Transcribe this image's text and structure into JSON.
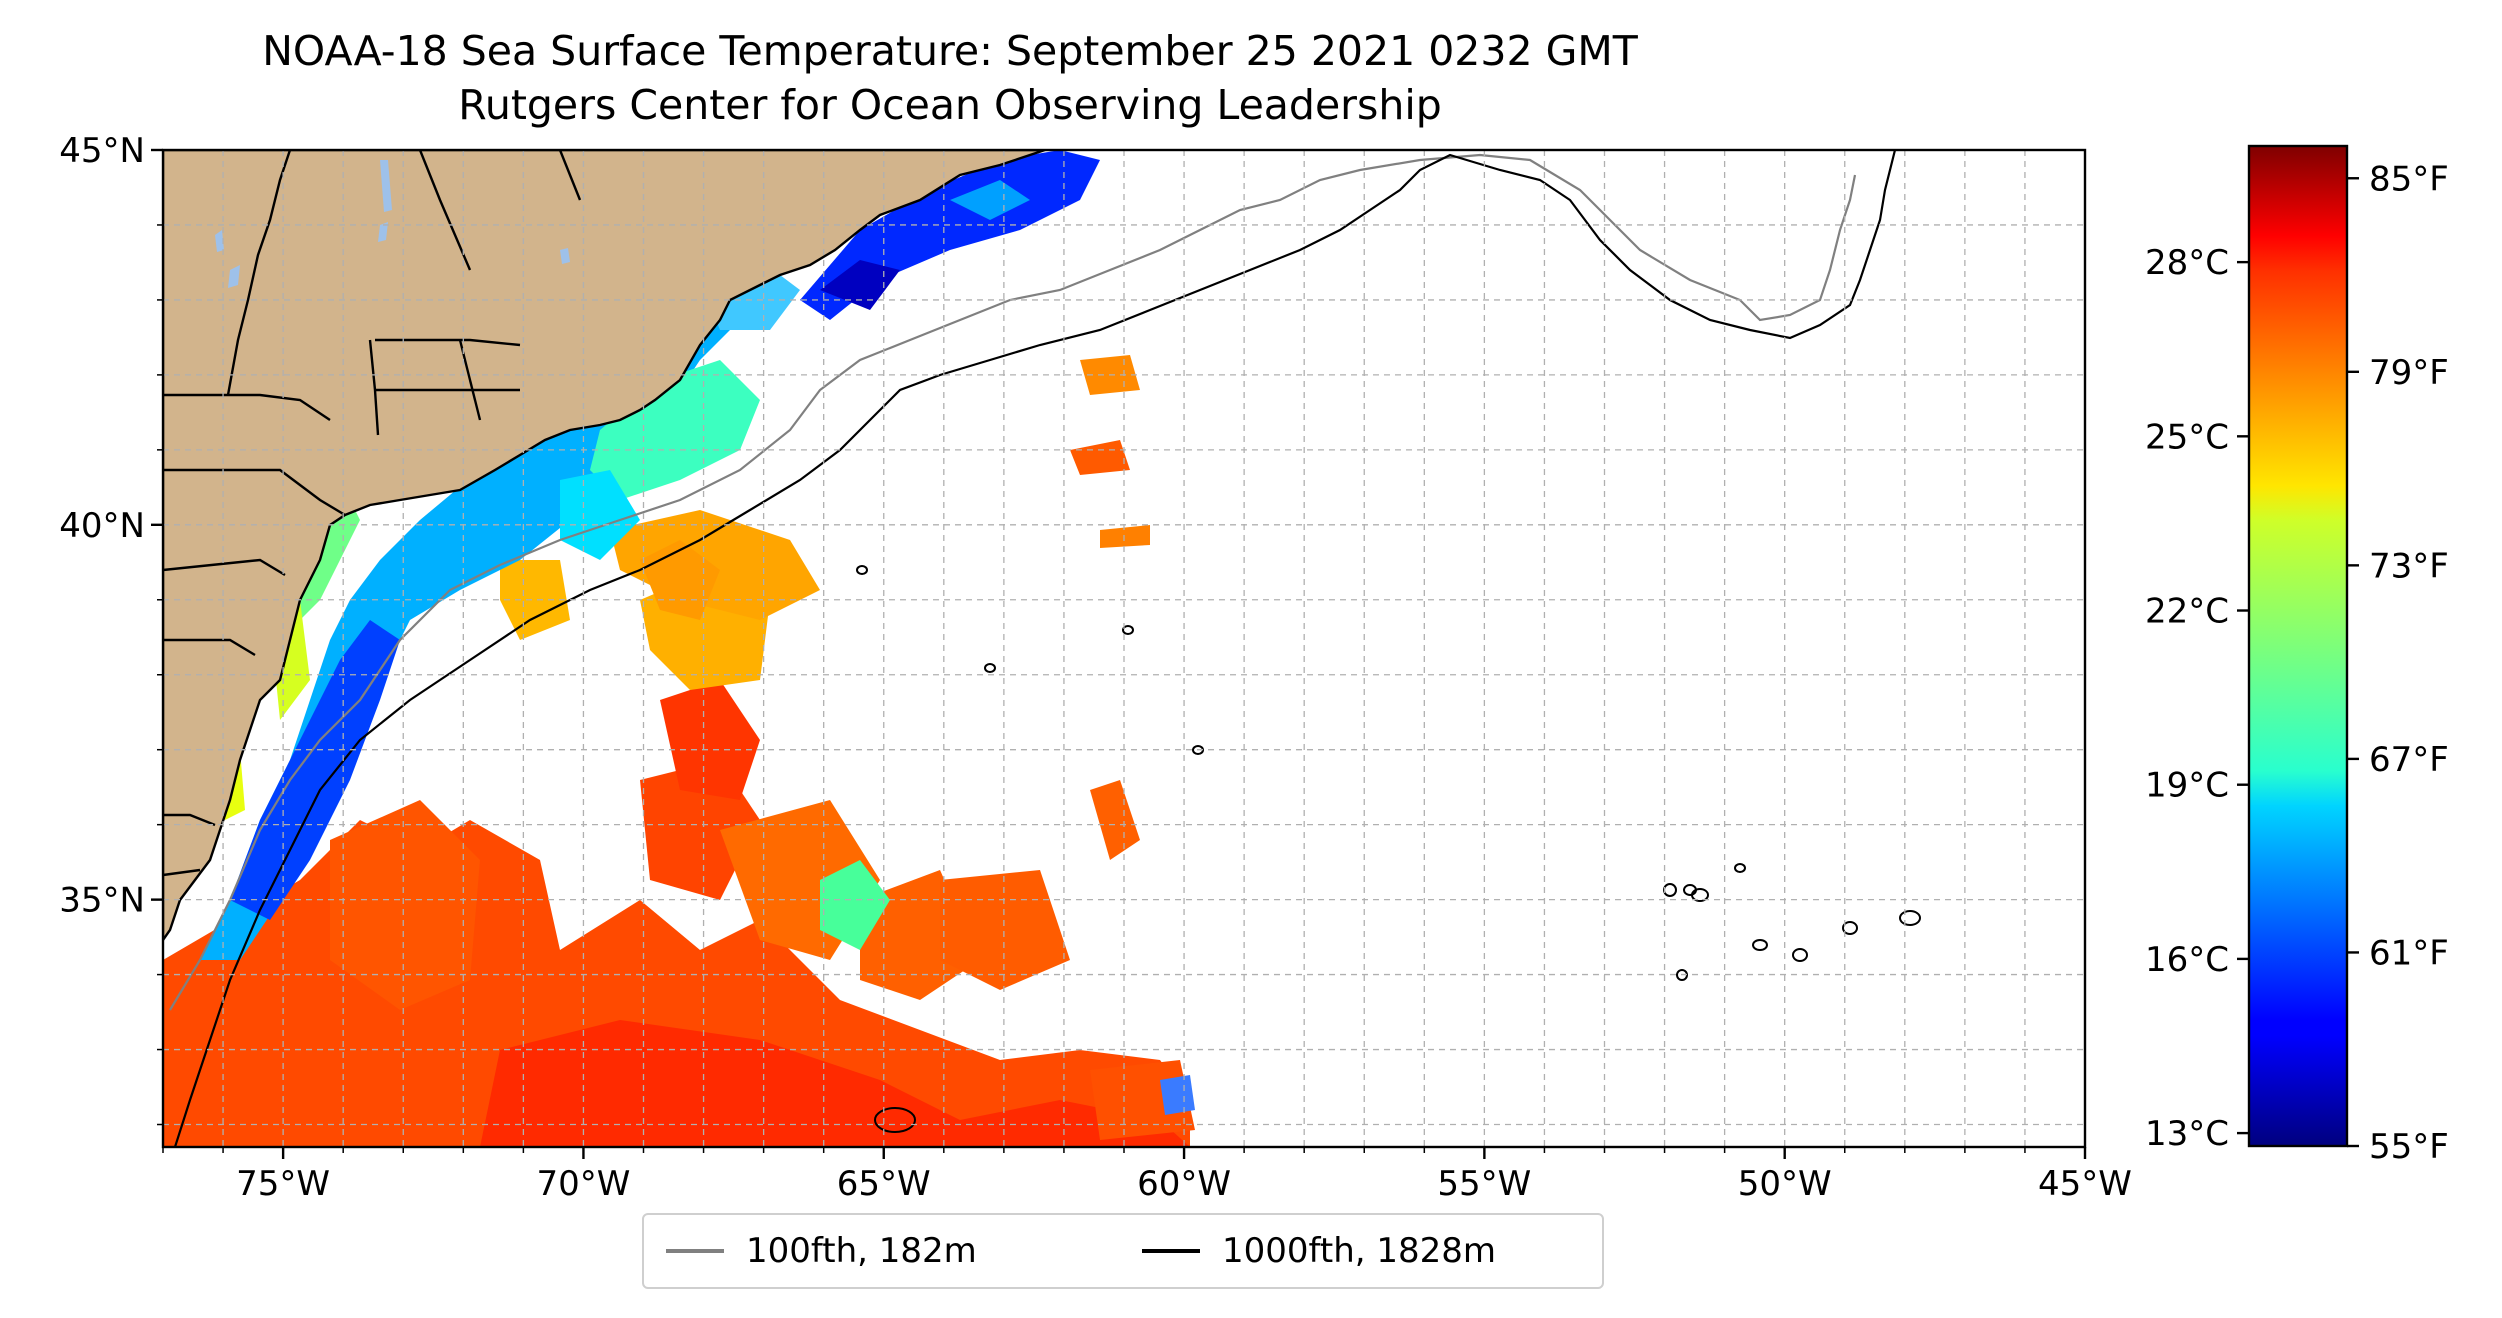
{
  "title": "NOAA-18 Sea Surface Temperature: September 25 2021 0232 GMT",
  "subtitle": "Rutgers Center for Ocean Observing Leadership",
  "map": {
    "lon_range": [
      -77,
      -45
    ],
    "lat_range": [
      31.7,
      45
    ],
    "lon_ticks": [
      {
        "lon": -75,
        "label": "75°W"
      },
      {
        "lon": -70,
        "label": "70°W"
      },
      {
        "lon": -65,
        "label": "65°W"
      },
      {
        "lon": -60,
        "label": "60°W"
      },
      {
        "lon": -55,
        "label": "55°W"
      },
      {
        "lon": -50,
        "label": "50°W"
      },
      {
        "lon": -45,
        "label": "45°W"
      }
    ],
    "lat_ticks": [
      {
        "lat": 45,
        "label": "45°N"
      },
      {
        "lat": 40,
        "label": "40°N"
      },
      {
        "lat": 35,
        "label": "35°N"
      }
    ],
    "grid": true,
    "land_color": "#d2b48c",
    "lake_color": "#9ec1ea"
  },
  "legend": {
    "placement": "bottom-center",
    "items": [
      {
        "label": "100fth, 182m",
        "color": "#808080"
      },
      {
        "label": "1000fth, 1828m",
        "color": "#000000"
      }
    ]
  },
  "colorbar": {
    "colormap": "jet",
    "range_f": [
      55,
      86
    ],
    "celsius_ticks": [
      {
        "label": "28°C",
        "f": 82.4
      },
      {
        "label": "25°C",
        "f": 77
      },
      {
        "label": "22°C",
        "f": 71.6
      },
      {
        "label": "19°C",
        "f": 66.2
      },
      {
        "label": "16°C",
        "f": 60.8
      },
      {
        "label": "13°C",
        "f": 55.4
      }
    ],
    "fahrenheit_ticks": [
      {
        "label": "85°F",
        "f": 85
      },
      {
        "label": "79°F",
        "f": 79
      },
      {
        "label": "73°F",
        "f": 73
      },
      {
        "label": "67°F",
        "f": 67
      },
      {
        "label": "61°F",
        "f": 61
      },
      {
        "label": "55°F",
        "f": 55
      }
    ]
  }
}
